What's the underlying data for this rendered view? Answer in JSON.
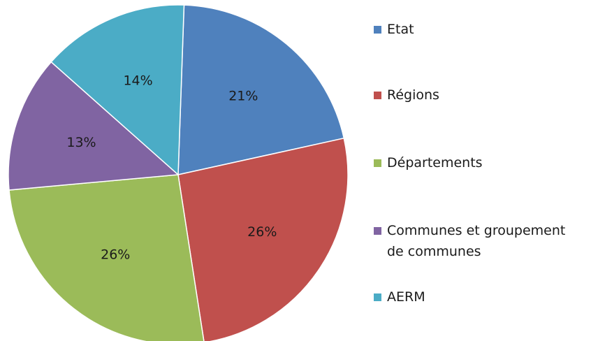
{
  "chart_data": {
    "type": "pie",
    "categories": [
      "Etat",
      "Régions",
      "Départements",
      "Communes et groupement de communes",
      "AERM"
    ],
    "values": [
      21,
      26,
      26,
      13,
      14
    ],
    "value_labels": [
      "21%",
      "26%",
      "26%",
      "13%",
      "14%"
    ],
    "colors": [
      "#4f81bd",
      "#c0504d",
      "#9bbb59",
      "#8064a2",
      "#4bacc6"
    ],
    "legend": "right"
  }
}
